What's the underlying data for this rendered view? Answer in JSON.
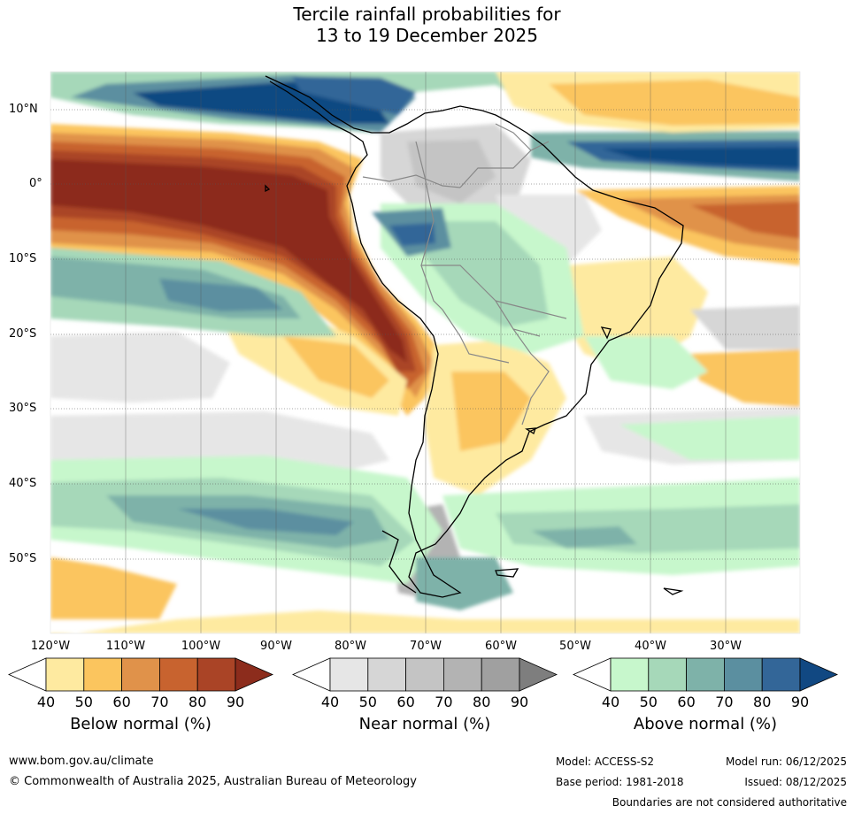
{
  "title": {
    "line1": "Tercile rainfall probabilities for",
    "line2": "13 to 19 December 2025"
  },
  "map": {
    "lat_ticks": [
      "10°N",
      "0°",
      "10°S",
      "20°S",
      "30°S",
      "40°S",
      "50°S"
    ],
    "lon_ticks": [
      "120°W",
      "110°W",
      "100°W",
      "90°W",
      "80°W",
      "70°W",
      "60°W",
      "50°W",
      "40°W",
      "30°W"
    ]
  },
  "legend": {
    "below": {
      "title": "Below normal (%)",
      "levels": [
        "40",
        "50",
        "60",
        "70",
        "80",
        "90"
      ],
      "colors": [
        "#ffffff",
        "#feeaa0",
        "#fbc55e",
        "#e0924a",
        "#c8632f",
        "#aa4426",
        "#8c2c1c"
      ]
    },
    "near": {
      "title": "Near normal (%)",
      "levels": [
        "40",
        "50",
        "60",
        "70",
        "80",
        "90"
      ],
      "colors": [
        "#ffffff",
        "#e6e6e6",
        "#d6d6d6",
        "#c4c4c4",
        "#b3b3b3",
        "#a0a0a0",
        "#7e7e7e"
      ]
    },
    "above": {
      "title": "Above normal (%)",
      "levels": [
        "40",
        "50",
        "60",
        "70",
        "80",
        "90"
      ],
      "colors": [
        "#ffffff",
        "#c7f7cc",
        "#a6d8b9",
        "#7eb2a9",
        "#5b8fa0",
        "#336698",
        "#114882"
      ]
    }
  },
  "footer": {
    "website": "www.bom.gov.au/climate",
    "copyright": "© Commonwealth of Australia 2025, Australian Bureau of Meteorology",
    "model": "Model: ACCESS-S2",
    "base_period": "Base period: 1981-2018",
    "model_run": "Model run: 06/12/2025",
    "issued": "Issued: 08/12/2025",
    "disclaimer": "Boundaries are not considered authoritative"
  }
}
